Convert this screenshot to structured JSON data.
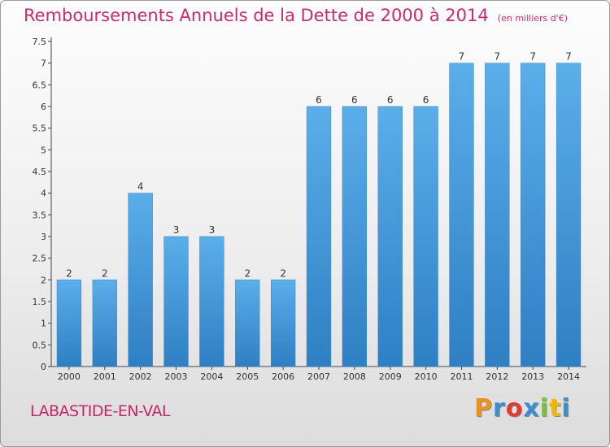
{
  "header": {
    "title": "Remboursements Annuels de la Dette de 2000 à 2014",
    "unit": "(en milliers d'€)"
  },
  "footer": {
    "place": "LABASTIDE-EN-VAL",
    "logo": "Proxiti",
    "logo_colors": [
      "#e8931e",
      "#3a8fd1",
      "#e23a2e",
      "#3a8fd1",
      "#7bbf3a",
      "#f2b800",
      "#3a8fd1"
    ]
  },
  "chart_data": {
    "type": "bar",
    "title": "Remboursements Annuels de la Dette de 2000 à 2014",
    "categories": [
      "2000",
      "2001",
      "2002",
      "2003",
      "2004",
      "2005",
      "2006",
      "2007",
      "2008",
      "2009",
      "2010",
      "2011",
      "2012",
      "2013",
      "2014"
    ],
    "values": [
      2,
      2,
      4,
      3,
      3,
      2,
      2,
      6,
      6,
      6,
      6,
      7,
      7,
      7,
      7
    ],
    "data_labels": [
      "2",
      "2",
      "4",
      "3",
      "3",
      "2",
      "2",
      "6",
      "6",
      "6",
      "6",
      "7",
      "7",
      "7",
      "7"
    ],
    "yticks": [
      "0",
      "0.5",
      "1",
      "1.5",
      "2",
      "2.5",
      "3",
      "3.5",
      "4",
      "4.5",
      "5",
      "5.5",
      "6",
      "6.5",
      "7",
      "7.5"
    ],
    "ylim": [
      0,
      7.5
    ],
    "grid": false,
    "bar_color": "#4a9fe0"
  }
}
